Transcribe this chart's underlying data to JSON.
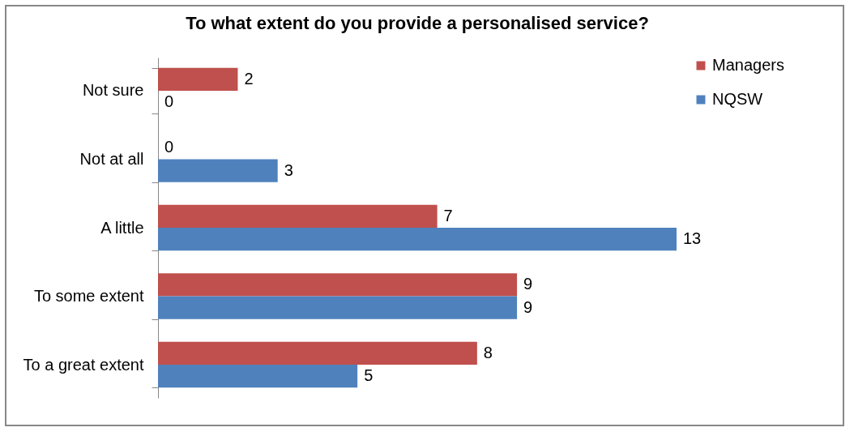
{
  "chart_data": {
    "type": "bar",
    "orientation": "horizontal",
    "title": "To what extent do you provide a personalised service?",
    "categories": [
      "Not sure",
      "Not at all",
      "A little",
      "To some extent",
      "To a great extent"
    ],
    "series": [
      {
        "name": "Managers",
        "color": "#c0504d",
        "values": [
          2,
          0,
          7,
          9,
          8
        ]
      },
      {
        "name": "NQSW",
        "color": "#4f81bd",
        "values": [
          0,
          3,
          13,
          9,
          5
        ]
      }
    ],
    "data_labels": true,
    "legend": "right",
    "tick_labels": "y",
    "grid": false
  }
}
